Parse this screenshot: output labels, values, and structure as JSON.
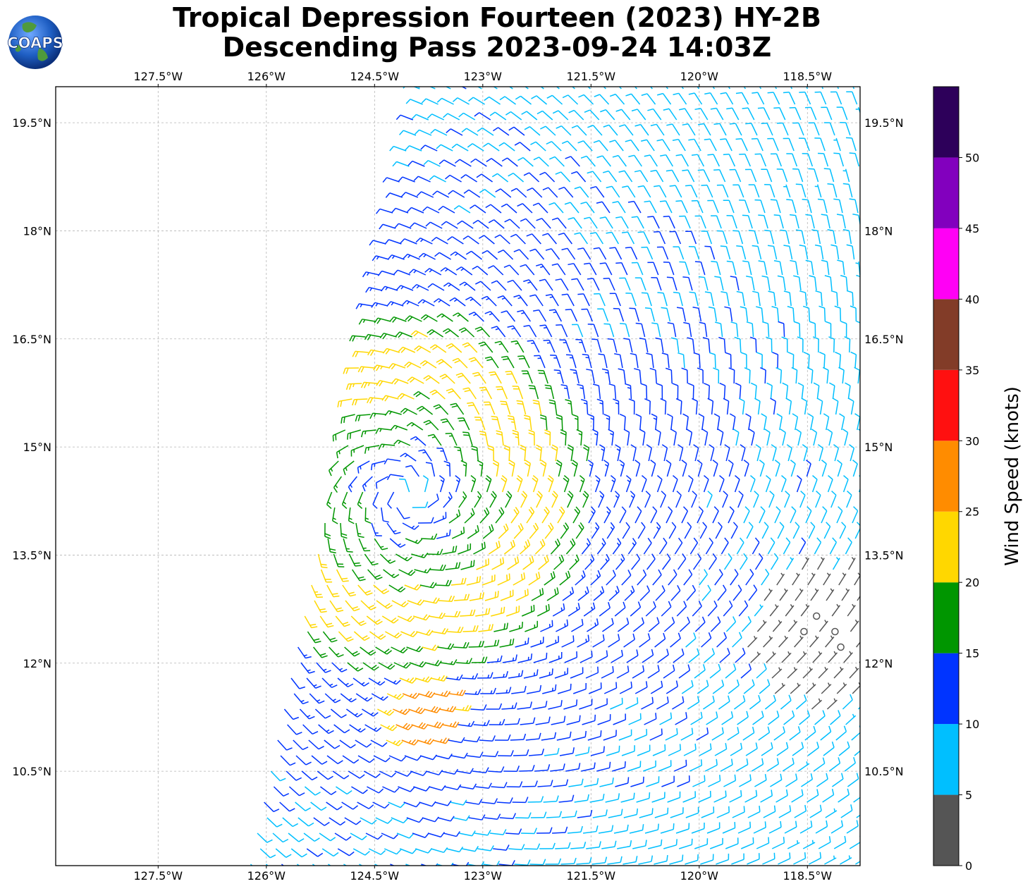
{
  "title": {
    "line1": "Tropical Depression Fourteen (2023) HY-2B",
    "line2": "Descending Pass 2023-09-24 14:03Z"
  },
  "logo": {
    "text": "COAPS"
  },
  "map": {
    "lon_ticks": [
      "127.5°W",
      "126°W",
      "124.5°W",
      "123°W",
      "121.5°W",
      "120°W",
      "118.5°W"
    ],
    "lat_ticks": [
      "19.5°N",
      "18°N",
      "16.5°N",
      "15°N",
      "13.5°N",
      "12°N",
      "10.5°N"
    ],
    "lon_values": [
      -127.5,
      -126,
      -124.5,
      -123,
      -121.5,
      -120,
      -118.5
    ],
    "lat_values": [
      19.5,
      18,
      16.5,
      15,
      13.5,
      12,
      10.5
    ],
    "lon_range": [
      -128.92,
      -117.77
    ],
    "lat_range": [
      9.19,
      20.0
    ],
    "gridlines": true
  },
  "chart_data": {
    "type": "wind-barb-map",
    "storm_center_approx": {
      "lon": -124.05,
      "lat": 14.35
    },
    "colorbar": {
      "label": "Wind Speed (knots)",
      "ticks": [
        "0",
        "5",
        "10",
        "15",
        "20",
        "25",
        "30",
        "35",
        "40",
        "45",
        "50"
      ],
      "bins": [
        {
          "min": 0,
          "max": 5,
          "color": "#555555"
        },
        {
          "min": 5,
          "max": 10,
          "color": "#00bfff"
        },
        {
          "min": 10,
          "max": 15,
          "color": "#0034ff"
        },
        {
          "min": 15,
          "max": 20,
          "color": "#009600"
        },
        {
          "min": 20,
          "max": 25,
          "color": "#ffd700"
        },
        {
          "min": 25,
          "max": 30,
          "color": "#ff8c00"
        },
        {
          "min": 30,
          "max": 35,
          "color": "#ff1010"
        },
        {
          "min": 35,
          "max": 40,
          "color": "#823c28"
        },
        {
          "min": 40,
          "max": 45,
          "color": "#ff00f5"
        },
        {
          "min": 45,
          "max": 50,
          "color": "#8200be"
        },
        {
          "min": 50,
          "max": 55,
          "color": "#2d005a"
        }
      ]
    }
  }
}
